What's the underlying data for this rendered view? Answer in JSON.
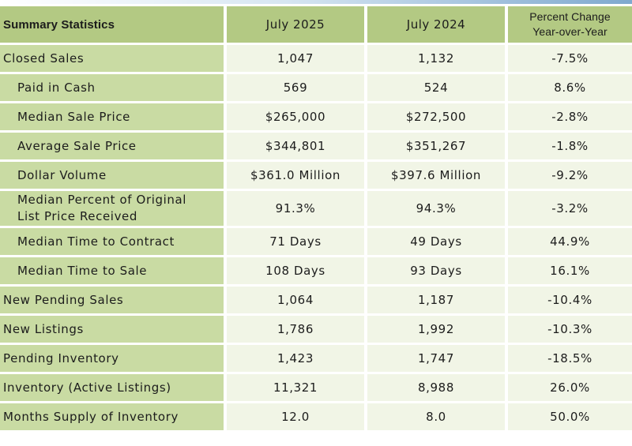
{
  "table": {
    "headers": {
      "label": "Summary Statistics",
      "year_current": "July 2025",
      "year_prior": "July 2024",
      "pct_line1": "Percent Change",
      "pct_line2": "Year-over-Year"
    },
    "rows": [
      {
        "label": "Closed Sales",
        "sub": false,
        "current": "1,047",
        "prior": "1,132",
        "change": "-7.5%"
      },
      {
        "label": "Paid in Cash",
        "sub": true,
        "current": "569",
        "prior": "524",
        "change": "8.6%"
      },
      {
        "label": "Median Sale Price",
        "sub": true,
        "current": "$265,000",
        "prior": "$272,500",
        "change": "-2.8%"
      },
      {
        "label": "Average Sale Price",
        "sub": true,
        "current": "$344,801",
        "prior": "$351,267",
        "change": "-1.8%"
      },
      {
        "label": "Dollar Volume",
        "sub": true,
        "current": "$361.0 Million",
        "prior": "$397.6 Million",
        "change": "-9.2%"
      },
      {
        "label": "Median Percent of Original",
        "label_line2": "List Price Received",
        "sub": true,
        "current": "91.3%",
        "prior": "94.3%",
        "change": "-3.2%"
      },
      {
        "label": "Median Time to Contract",
        "sub": true,
        "current": "71 Days",
        "prior": "49 Days",
        "change": "44.9%"
      },
      {
        "label": "Median Time to Sale",
        "sub": true,
        "current": "108 Days",
        "prior": "93 Days",
        "change": "16.1%"
      },
      {
        "label": "New Pending Sales",
        "sub": false,
        "current": "1,064",
        "prior": "1,187",
        "change": "-10.4%"
      },
      {
        "label": "New Listings",
        "sub": false,
        "current": "1,786",
        "prior": "1,992",
        "change": "-10.3%"
      },
      {
        "label": "Pending Inventory",
        "sub": false,
        "current": "1,423",
        "prior": "1,747",
        "change": "-18.5%"
      },
      {
        "label": "Inventory (Active Listings)",
        "sub": false,
        "current": "11,321",
        "prior": "8,988",
        "change": "26.0%"
      },
      {
        "label": "Months Supply of Inventory",
        "sub": false,
        "current": "12.0",
        "prior": "8.0",
        "change": "50.0%"
      }
    ]
  },
  "colors": {
    "header_bg": "#b3c983",
    "label_bg": "#c9dba3",
    "value_bg": "#f1f5e6"
  }
}
